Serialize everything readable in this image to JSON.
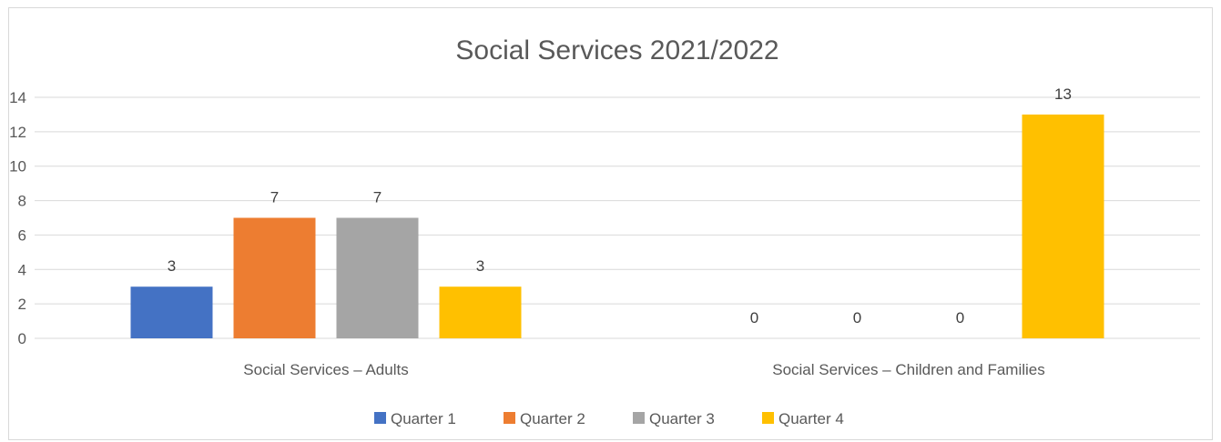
{
  "chart_data": {
    "type": "bar",
    "title": "Social Services 2021/2022",
    "xlabel": "",
    "ylabel": "",
    "ylim": [
      0,
      14
    ],
    "yticks": [
      0,
      2,
      4,
      6,
      8,
      10,
      12,
      14
    ],
    "grid": true,
    "legend_position": "bottom",
    "categories": [
      "Social Services – Adults",
      "Social Services – Children and Families"
    ],
    "series": [
      {
        "name": "Quarter 1",
        "color": "#4472c4",
        "values": [
          3,
          0
        ]
      },
      {
        "name": "Quarter 2",
        "color": "#ed7d31",
        "values": [
          7,
          0
        ]
      },
      {
        "name": "Quarter 3",
        "color": "#a5a5a5",
        "values": [
          7,
          0
        ]
      },
      {
        "name": "Quarter 4",
        "color": "#ffc000",
        "values": [
          3,
          13
        ]
      }
    ]
  }
}
